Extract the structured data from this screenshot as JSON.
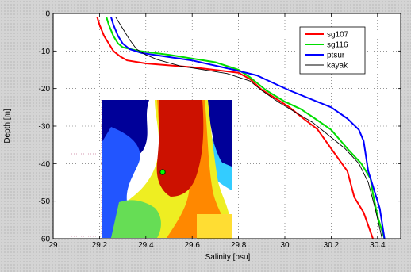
{
  "chart_data": {
    "type": "line",
    "title": "",
    "xlabel": "Salinity [psu]",
    "ylabel": "Depth [m]",
    "xlim": [
      29,
      30.5
    ],
    "ylim": [
      -60,
      0
    ],
    "xticks": [
      "29",
      "29.2",
      "29.4",
      "29.6",
      "29.8",
      "30",
      "30.2",
      "30.4"
    ],
    "xtick_values": [
      29,
      29.2,
      29.4,
      29.6,
      29.8,
      30,
      30.2,
      30.4
    ],
    "yticks": [
      "0",
      "-10",
      "-20",
      "-30",
      "-40",
      "-50",
      "-60"
    ],
    "ytick_values": [
      0,
      -10,
      -20,
      -30,
      -40,
      -50,
      -60
    ],
    "grid": true,
    "legend_position": "top-right",
    "series": [
      {
        "name": "sg107",
        "color": "#ff0000",
        "x": [
          29.19,
          29.2,
          29.22,
          29.24,
          29.26,
          29.29,
          29.32,
          29.4,
          29.6,
          29.8,
          29.85,
          29.9,
          29.97,
          30.02,
          30.08,
          30.14,
          30.2,
          30.27,
          30.3,
          30.34,
          30.38
        ],
        "y": [
          -1,
          -3,
          -6,
          -8,
          -10,
          -11.5,
          -12.5,
          -13.3,
          -14.3,
          -15.8,
          -17.5,
          -20.3,
          -23,
          -25,
          -28,
          -30.8,
          -36,
          -42,
          -49,
          -53,
          -60
        ]
      },
      {
        "name": "sg116",
        "color": "#00dd00",
        "x": [
          29.23,
          29.24,
          29.26,
          29.28,
          29.3,
          29.37,
          29.5,
          29.7,
          29.8,
          29.85,
          29.92,
          30.0,
          30.07,
          30.13,
          30.2,
          30.27,
          30.33,
          30.37,
          30.38,
          30.4,
          30.43
        ],
        "y": [
          -1,
          -3,
          -6,
          -8,
          -9,
          -10,
          -11,
          -13,
          -15,
          -17,
          -20.5,
          -23.5,
          -25.5,
          -28,
          -31,
          -36,
          -40,
          -44,
          -48,
          -54,
          -60
        ]
      },
      {
        "name": "ptsur",
        "color": "#0000ff",
        "x": [
          29.25,
          29.26,
          29.28,
          29.3,
          29.33,
          29.38,
          29.6,
          29.78,
          29.88,
          29.95,
          30.02,
          30.1,
          30.2,
          30.27,
          30.32,
          30.34,
          30.36,
          30.38,
          30.41,
          30.43
        ],
        "y": [
          -1,
          -3,
          -6,
          -8,
          -9.5,
          -10.5,
          -12.5,
          -15,
          -16.5,
          -18.5,
          -20.5,
          -22.5,
          -25,
          -28,
          -31,
          -34,
          -42,
          -46,
          -52,
          -60
        ]
      },
      {
        "name": "kayak",
        "color": "#000000",
        "x": [
          29.27,
          29.3,
          29.33,
          29.36,
          29.4,
          29.45,
          29.55,
          29.75,
          29.85,
          29.9,
          29.97,
          30.05,
          30.12,
          30.18,
          30.26,
          30.32,
          30.36,
          30.39,
          30.42
        ],
        "y": [
          -1,
          -4,
          -7,
          -9.5,
          -11,
          -12.3,
          -14,
          -16,
          -18,
          -20.5,
          -23.5,
          -26.5,
          -29,
          -32,
          -36,
          -40,
          -45,
          -52,
          -60
        ]
      }
    ]
  },
  "inset": {
    "image": "salinity-map-inset",
    "marker_color": "#00ff00"
  }
}
